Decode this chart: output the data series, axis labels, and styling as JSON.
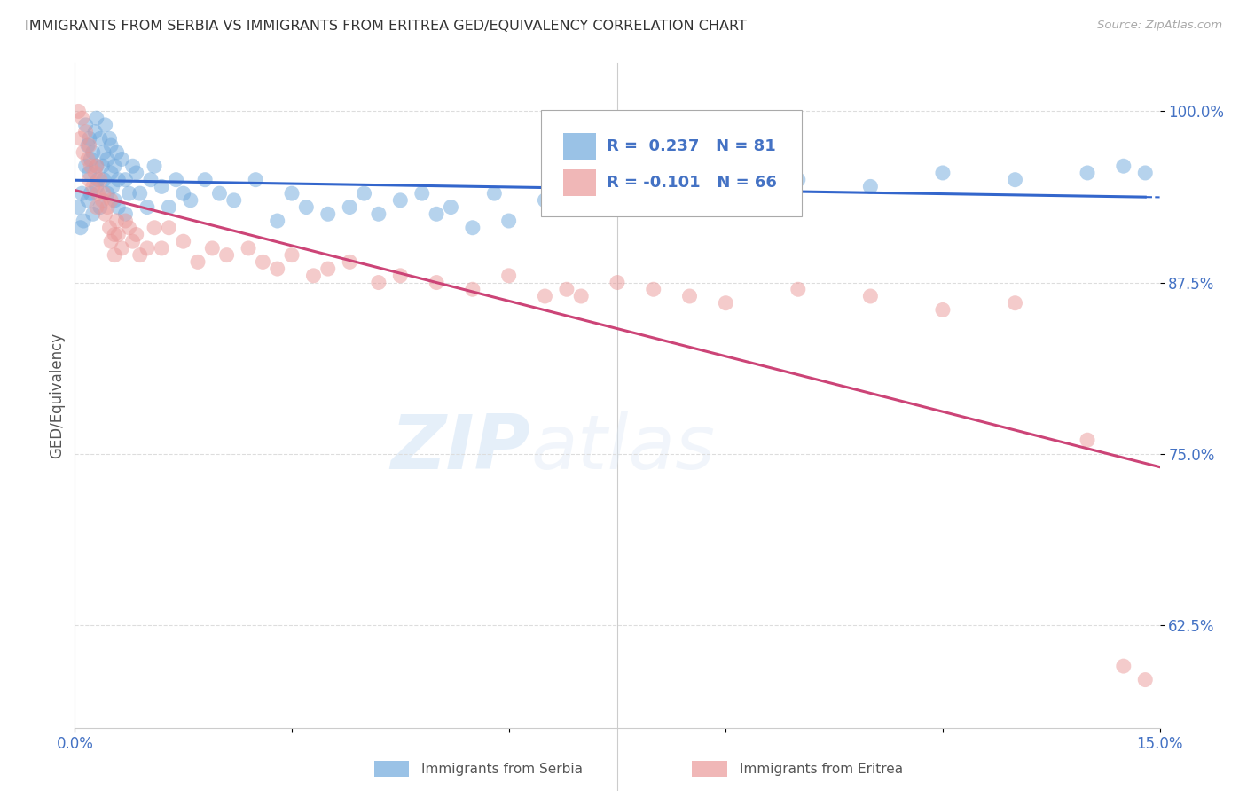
{
  "title": "IMMIGRANTS FROM SERBIA VS IMMIGRANTS FROM ERITREA GED/EQUIVALENCY CORRELATION CHART",
  "source": "Source: ZipAtlas.com",
  "ylabel": "GED/Equivalency",
  "yticks": [
    62.5,
    75.0,
    87.5,
    100.0
  ],
  "ytick_labels": [
    "62.5%",
    "75.0%",
    "87.5%",
    "100.0%"
  ],
  "xlim": [
    0.0,
    15.0
  ],
  "ylim": [
    55.0,
    103.5
  ],
  "serbia_R": 0.237,
  "serbia_N": 81,
  "eritrea_R": -0.101,
  "eritrea_N": 66,
  "serbia_color": "#6fa8dc",
  "eritrea_color": "#ea9999",
  "serbia_line_color": "#3366cc",
  "eritrea_line_color": "#cc4477",
  "legend_serbia": "Immigrants from Serbia",
  "legend_eritrea": "Immigrants from Eritrea",
  "watermark_zip": "ZIP",
  "watermark_atlas": "atlas",
  "serbia_x": [
    0.05,
    0.08,
    0.1,
    0.12,
    0.15,
    0.15,
    0.18,
    0.18,
    0.2,
    0.2,
    0.22,
    0.22,
    0.25,
    0.25,
    0.28,
    0.3,
    0.3,
    0.3,
    0.32,
    0.35,
    0.35,
    0.38,
    0.4,
    0.4,
    0.42,
    0.45,
    0.45,
    0.48,
    0.5,
    0.5,
    0.52,
    0.55,
    0.55,
    0.58,
    0.6,
    0.6,
    0.65,
    0.7,
    0.7,
    0.75,
    0.8,
    0.85,
    0.9,
    1.0,
    1.05,
    1.1,
    1.2,
    1.3,
    1.4,
    1.5,
    1.6,
    1.8,
    2.0,
    2.2,
    2.5,
    2.8,
    3.0,
    3.2,
    3.5,
    3.8,
    4.0,
    4.2,
    4.5,
    4.8,
    5.0,
    5.2,
    5.5,
    5.8,
    6.0,
    6.5,
    7.0,
    7.5,
    8.0,
    9.0,
    10.0,
    11.0,
    12.0,
    13.0,
    14.0,
    14.5,
    14.8
  ],
  "serbia_y": [
    93.0,
    91.5,
    94.0,
    92.0,
    96.0,
    99.0,
    97.5,
    93.5,
    98.0,
    95.5,
    96.5,
    94.0,
    97.0,
    92.5,
    98.5,
    99.5,
    96.0,
    94.5,
    95.0,
    98.0,
    93.0,
    96.0,
    97.0,
    95.0,
    99.0,
    96.5,
    94.0,
    98.0,
    97.5,
    95.5,
    94.5,
    96.0,
    93.5,
    97.0,
    95.0,
    93.0,
    96.5,
    95.0,
    92.5,
    94.0,
    96.0,
    95.5,
    94.0,
    93.0,
    95.0,
    96.0,
    94.5,
    93.0,
    95.0,
    94.0,
    93.5,
    95.0,
    94.0,
    93.5,
    95.0,
    92.0,
    94.0,
    93.0,
    92.5,
    93.0,
    94.0,
    92.5,
    93.5,
    94.0,
    92.5,
    93.0,
    91.5,
    94.0,
    92.0,
    93.5,
    94.0,
    93.0,
    93.5,
    94.0,
    95.0,
    94.5,
    95.5,
    95.0,
    95.5,
    96.0,
    95.5
  ],
  "eritrea_x": [
    0.05,
    0.08,
    0.1,
    0.12,
    0.15,
    0.18,
    0.2,
    0.2,
    0.22,
    0.25,
    0.28,
    0.3,
    0.3,
    0.32,
    0.35,
    0.38,
    0.4,
    0.42,
    0.45,
    0.48,
    0.5,
    0.5,
    0.55,
    0.55,
    0.58,
    0.6,
    0.65,
    0.7,
    0.75,
    0.8,
    0.85,
    0.9,
    1.0,
    1.1,
    1.2,
    1.3,
    1.5,
    1.7,
    1.9,
    2.1,
    2.4,
    2.6,
    2.8,
    3.0,
    3.3,
    3.5,
    3.8,
    4.2,
    4.5,
    5.0,
    5.5,
    6.0,
    6.5,
    6.8,
    7.0,
    7.5,
    8.0,
    8.5,
    9.0,
    10.0,
    11.0,
    12.0,
    13.0,
    14.0,
    14.5,
    14.8
  ],
  "eritrea_y": [
    100.0,
    98.0,
    99.5,
    97.0,
    98.5,
    96.5,
    97.5,
    95.0,
    96.0,
    94.5,
    95.5,
    93.0,
    96.0,
    94.0,
    95.0,
    93.5,
    94.0,
    92.5,
    93.0,
    91.5,
    93.5,
    90.5,
    91.0,
    89.5,
    92.0,
    91.0,
    90.0,
    92.0,
    91.5,
    90.5,
    91.0,
    89.5,
    90.0,
    91.5,
    90.0,
    91.5,
    90.5,
    89.0,
    90.0,
    89.5,
    90.0,
    89.0,
    88.5,
    89.5,
    88.0,
    88.5,
    89.0,
    87.5,
    88.0,
    87.5,
    87.0,
    88.0,
    86.5,
    87.0,
    86.5,
    87.5,
    87.0,
    86.5,
    86.0,
    87.0,
    86.5,
    85.5,
    86.0,
    76.0,
    59.5,
    58.5
  ]
}
